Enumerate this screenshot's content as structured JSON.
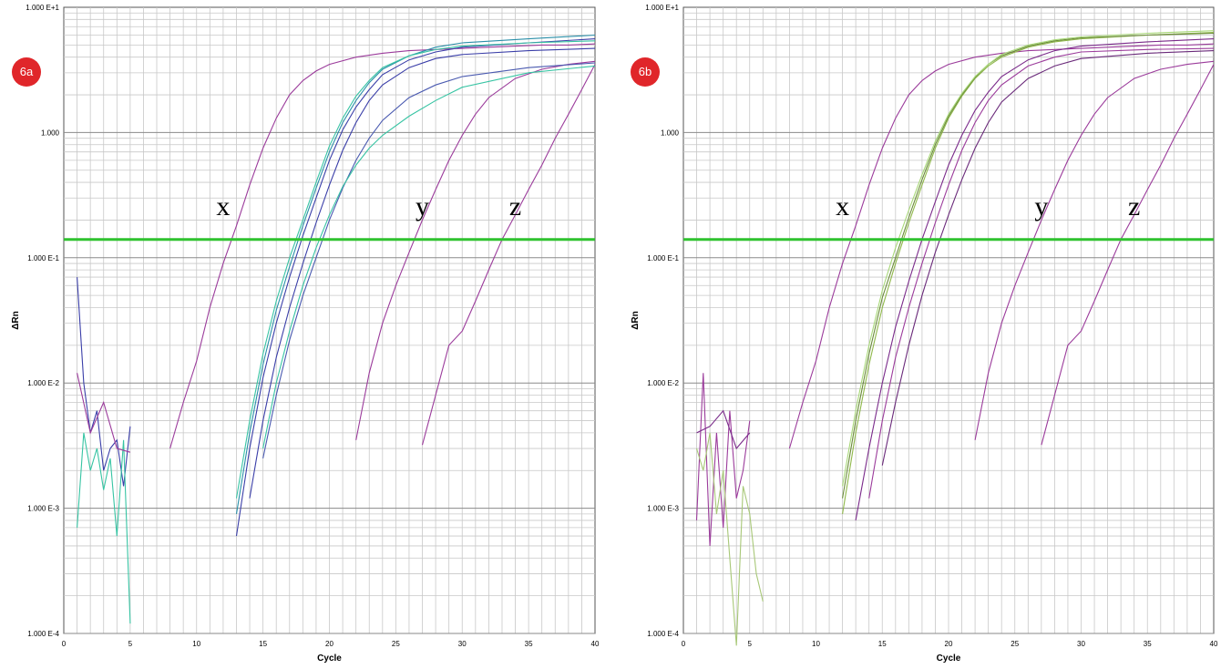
{
  "panels": [
    {
      "badge": "6a",
      "chart_data": {
        "type": "line",
        "xlabel": "Cycle",
        "ylabel": "ΔRn",
        "y_scale": "log",
        "xlim": [
          0,
          40
        ],
        "ylim": [
          0.0001,
          10
        ],
        "grid": true,
        "x_ticks": [
          "0",
          "5",
          "10",
          "15",
          "20",
          "25",
          "30",
          "35",
          "40"
        ],
        "y_ticks": [
          "1.000 E-4",
          "1.000 E-3",
          "1.000 E-2",
          "1.000 E-1",
          "1.000",
          "1.000 E+1"
        ],
        "threshold": 0.14,
        "threshold_color": "#2fc22f",
        "annotations": [
          {
            "text": "x",
            "x": 12,
            "y": 0.22
          },
          {
            "text": "y",
            "x": 27,
            "y": 0.22
          },
          {
            "text": "z",
            "x": 34,
            "y": 0.22
          }
        ],
        "series": [
          {
            "color": "#9b3b9b",
            "x": [
              8,
              9,
              10,
              11,
              12,
              13,
              14,
              15,
              16,
              17,
              18,
              19,
              20,
              22,
              24,
              26,
              28,
              30,
              32,
              34,
              36,
              38,
              40
            ],
            "y": [
              0.003,
              0.007,
              0.015,
              0.04,
              0.09,
              0.18,
              0.38,
              0.75,
              1.3,
              2.0,
              2.6,
              3.1,
              3.5,
              4.0,
              4.3,
              4.5,
              4.6,
              4.7,
              4.8,
              4.9,
              5.0,
              5.0,
              5.1
            ]
          },
          {
            "color": "#9b3b9b",
            "x": [
              22,
              23,
              24,
              25,
              26,
              27,
              28,
              29,
              30,
              31,
              32,
              34,
              36,
              38,
              40
            ],
            "y": [
              0.0035,
              0.012,
              0.03,
              0.06,
              0.11,
              0.2,
              0.35,
              0.6,
              0.95,
              1.4,
              1.9,
              2.7,
              3.2,
              3.5,
              3.7
            ]
          },
          {
            "color": "#9b3b9b",
            "x": [
              27,
              28,
              29,
              30,
              31,
              32,
              33,
              34,
              35,
              36,
              37,
              38,
              39,
              40
            ],
            "y": [
              0.0032,
              0.008,
              0.02,
              0.026,
              0.045,
              0.08,
              0.14,
              0.22,
              0.35,
              0.55,
              0.9,
              1.4,
              2.2,
              3.5
            ]
          },
          {
            "color": "#3a3ea8",
            "x": [
              13,
              14,
              15,
              16,
              17,
              18,
              19,
              20,
              21,
              22,
              23,
              24,
              26,
              28,
              30,
              35,
              40
            ],
            "y": [
              0.0006,
              0.003,
              0.011,
              0.03,
              0.07,
              0.15,
              0.3,
              0.6,
              1.05,
              1.6,
              2.2,
              2.9,
              3.8,
              4.4,
              4.8,
              5.2,
              5.6
            ]
          },
          {
            "color": "#2a8fa8",
            "x": [
              13,
              14,
              15,
              16,
              17,
              18,
              19,
              20,
              21,
              22,
              23,
              24,
              26,
              28,
              30,
              35,
              40
            ],
            "y": [
              0.0009,
              0.004,
              0.014,
              0.038,
              0.085,
              0.18,
              0.36,
              0.7,
              1.2,
              1.8,
              2.5,
              3.2,
              4.1,
              4.8,
              5.2,
              5.6,
              6.0
            ]
          },
          {
            "color": "#37c4a3",
            "x": [
              13,
              14,
              15,
              16,
              17,
              18,
              19,
              20,
              21,
              22,
              23,
              24,
              26,
              28,
              30,
              35,
              40
            ],
            "y": [
              0.0012,
              0.005,
              0.017,
              0.045,
              0.1,
              0.2,
              0.4,
              0.78,
              1.3,
              1.95,
              2.6,
              3.3,
              4.1,
              4.6,
              4.9,
              5.2,
              5.4
            ]
          },
          {
            "color": "#3a3ea8",
            "x": [
              14,
              15,
              16,
              17,
              18,
              19,
              20,
              21,
              22,
              23,
              24,
              26,
              28,
              30,
              35,
              40
            ],
            "y": [
              0.0012,
              0.005,
              0.016,
              0.04,
              0.09,
              0.19,
              0.38,
              0.72,
              1.2,
              1.8,
              2.4,
              3.3,
              3.9,
              4.2,
              4.5,
              4.7
            ]
          },
          {
            "color": "#4a5ab0",
            "x": [
              15,
              16,
              17,
              18,
              19,
              20,
              21,
              22,
              23,
              24,
              26,
              28,
              30,
              35,
              40
            ],
            "y": [
              0.0025,
              0.008,
              0.022,
              0.05,
              0.1,
              0.2,
              0.36,
              0.6,
              0.9,
              1.25,
              1.9,
              2.4,
              2.8,
              3.3,
              3.6
            ]
          },
          {
            "color": "#37c4a3",
            "x": [
              15,
              16,
              17,
              18,
              19,
              20,
              21,
              22,
              23,
              24,
              26,
              28,
              30,
              35,
              40
            ],
            "y": [
              0.003,
              0.01,
              0.026,
              0.06,
              0.12,
              0.22,
              0.37,
              0.55,
              0.75,
              0.95,
              1.35,
              1.8,
              2.3,
              3.0,
              3.4
            ]
          },
          {
            "color": "#3a3ea8",
            "x": [
              1,
              1.5,
              2,
              2.5,
              3,
              3.5,
              4,
              4.5,
              5
            ],
            "y": [
              0.07,
              0.01,
              0.004,
              0.006,
              0.002,
              0.003,
              0.0035,
              0.0015,
              0.0045
            ]
          },
          {
            "color": "#37c4a3",
            "x": [
              1,
              1.5,
              2,
              2.5,
              3,
              3.5,
              4,
              4.5,
              5
            ],
            "y": [
              0.0007,
              0.004,
              0.002,
              0.003,
              0.0014,
              0.0025,
              0.0006,
              0.0035,
              0.00012
            ]
          },
          {
            "color": "#9b3b9b",
            "x": [
              1,
              2,
              3,
              4,
              5
            ],
            "y": [
              0.012,
              0.004,
              0.007,
              0.003,
              0.0028
            ]
          }
        ]
      }
    },
    {
      "badge": "6b",
      "chart_data": {
        "type": "line",
        "xlabel": "Cycle",
        "ylabel": "ΔRn",
        "y_scale": "log",
        "xlim": [
          0,
          40
        ],
        "ylim": [
          0.0001,
          10
        ],
        "grid": true,
        "x_ticks": [
          "0",
          "5",
          "10",
          "15",
          "20",
          "25",
          "30",
          "35",
          "40"
        ],
        "y_ticks": [
          "1.000 E-4",
          "1.000 E-3",
          "1.000 E-2",
          "1.000 E-1",
          "1.000",
          "1.000 E+1"
        ],
        "threshold": 0.14,
        "threshold_color": "#2fc22f",
        "annotations": [
          {
            "text": "x",
            "x": 12,
            "y": 0.22
          },
          {
            "text": "y",
            "x": 27,
            "y": 0.22
          },
          {
            "text": "z",
            "x": 34,
            "y": 0.22
          }
        ],
        "series": [
          {
            "color": "#9b3b9b",
            "x": [
              8,
              9,
              10,
              11,
              12,
              13,
              14,
              15,
              16,
              17,
              18,
              19,
              20,
              22,
              24,
              26,
              28,
              30,
              32,
              34,
              36,
              38,
              40
            ],
            "y": [
              0.003,
              0.007,
              0.015,
              0.04,
              0.09,
              0.18,
              0.38,
              0.75,
              1.3,
              2.0,
              2.6,
              3.1,
              3.5,
              4.0,
              4.3,
              4.5,
              4.6,
              4.7,
              4.8,
              4.9,
              5.0,
              5.0,
              5.1
            ]
          },
          {
            "color": "#9b3b9b",
            "x": [
              22,
              23,
              24,
              25,
              26,
              27,
              28,
              29,
              30,
              31,
              32,
              34,
              36,
              38,
              40
            ],
            "y": [
              0.0035,
              0.012,
              0.03,
              0.06,
              0.11,
              0.2,
              0.35,
              0.6,
              0.95,
              1.4,
              1.9,
              2.7,
              3.2,
              3.5,
              3.7
            ]
          },
          {
            "color": "#9b3b9b",
            "x": [
              27,
              28,
              29,
              30,
              31,
              32,
              33,
              34,
              35,
              36,
              37,
              38,
              39,
              40
            ],
            "y": [
              0.0032,
              0.008,
              0.02,
              0.026,
              0.045,
              0.08,
              0.14,
              0.22,
              0.35,
              0.55,
              0.9,
              1.4,
              2.2,
              3.5
            ]
          },
          {
            "color": "#8fb84a",
            "x": [
              12,
              13,
              14,
              15,
              16,
              17,
              18,
              19,
              20,
              21,
              22,
              23,
              24,
              26,
              28,
              30,
              35,
              40
            ],
            "y": [
              0.0009,
              0.004,
              0.014,
              0.04,
              0.09,
              0.19,
              0.38,
              0.75,
              1.3,
              1.95,
              2.7,
              3.4,
              4.0,
              4.8,
              5.3,
              5.6,
              6.0,
              6.3
            ]
          },
          {
            "color": "#6a8a3a",
            "x": [
              12,
              13,
              14,
              15,
              16,
              17,
              18,
              19,
              20,
              21,
              22,
              23,
              24,
              26,
              28,
              30,
              35,
              40
            ],
            "y": [
              0.0012,
              0.005,
              0.017,
              0.048,
              0.1,
              0.21,
              0.42,
              0.8,
              1.35,
              2.0,
              2.75,
              3.5,
              4.1,
              4.9,
              5.4,
              5.7,
              6.0,
              6.2
            ]
          },
          {
            "color": "#a8d878",
            "x": [
              12,
              13,
              14,
              15,
              16,
              17,
              18,
              19,
              20,
              21,
              22,
              23,
              24,
              26,
              28,
              30,
              35,
              40
            ],
            "y": [
              0.0015,
              0.006,
              0.02,
              0.055,
              0.12,
              0.24,
              0.46,
              0.85,
              1.4,
              2.05,
              2.8,
              3.5,
              4.2,
              5.0,
              5.5,
              5.8,
              6.2,
              6.5
            ]
          },
          {
            "color": "#7a2a8a",
            "x": [
              13,
              14,
              15,
              16,
              17,
              18,
              19,
              20,
              21,
              22,
              23,
              24,
              26,
              28,
              30,
              35,
              40
            ],
            "y": [
              0.0008,
              0.003,
              0.01,
              0.028,
              0.065,
              0.14,
              0.28,
              0.55,
              0.95,
              1.5,
              2.1,
              2.8,
              3.8,
              4.5,
              4.9,
              5.3,
              5.6
            ]
          },
          {
            "color": "#9b3b9b",
            "x": [
              14,
              15,
              16,
              17,
              18,
              19,
              20,
              21,
              22,
              23,
              24,
              26,
              28,
              30,
              35,
              40
            ],
            "y": [
              0.0012,
              0.005,
              0.016,
              0.04,
              0.09,
              0.19,
              0.38,
              0.72,
              1.2,
              1.8,
              2.4,
              3.4,
              4.0,
              4.4,
              4.6,
              4.7
            ]
          },
          {
            "color": "#6a2a7a",
            "x": [
              15,
              16,
              17,
              18,
              19,
              20,
              21,
              22,
              23,
              24,
              26,
              28,
              30,
              35,
              40
            ],
            "y": [
              0.0022,
              0.007,
              0.02,
              0.05,
              0.11,
              0.22,
              0.42,
              0.75,
              1.2,
              1.75,
              2.7,
              3.4,
              3.9,
              4.3,
              4.5
            ]
          },
          {
            "color": "#9b3b9b",
            "x": [
              1,
              1.5,
              2,
              2.5,
              3,
              3.5,
              4,
              4.5,
              5
            ],
            "y": [
              0.0008,
              0.012,
              0.0005,
              0.004,
              0.0007,
              0.006,
              0.0012,
              0.002,
              0.005
            ]
          },
          {
            "color": "#a8c878",
            "x": [
              1,
              1.5,
              2,
              2.5,
              3,
              3.5,
              4,
              4.5,
              5,
              5.5,
              6
            ],
            "y": [
              0.003,
              0.002,
              0.004,
              0.0009,
              0.002,
              0.0004,
              8e-05,
              0.0015,
              0.0009,
              0.0003,
              0.00018
            ]
          },
          {
            "color": "#7a2a8a",
            "x": [
              1,
              2,
              3,
              4,
              5
            ],
            "y": [
              0.004,
              0.0045,
              0.006,
              0.003,
              0.004
            ]
          }
        ]
      }
    }
  ]
}
